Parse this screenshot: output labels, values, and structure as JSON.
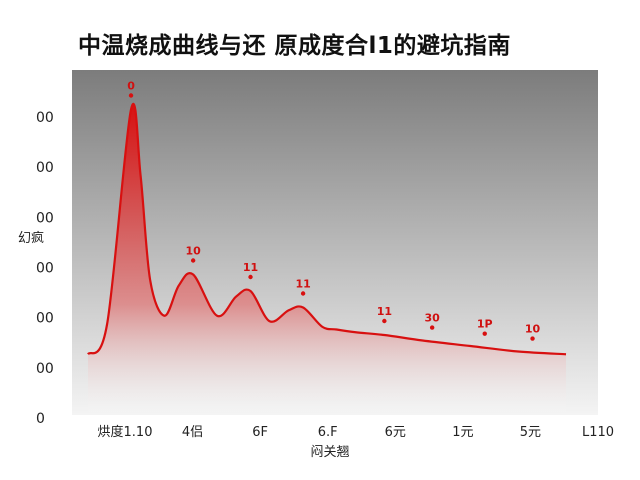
{
  "chart_data": {
    "type": "area",
    "title": "中温烧成曲线与还 原成度合l1的避坑指南",
    "xlabel": "闷关翘",
    "ylabel": "幻疯",
    "yticks": [
      "00",
      "00",
      "00",
      "00",
      "00",
      "00",
      "0"
    ],
    "xticks": [
      "烘度1.10",
      "4侣",
      "6F",
      "6.F",
      "6元",
      "1元",
      "5元",
      "L110"
    ],
    "xlim": [
      0,
      10
    ],
    "ylim": [
      0,
      6
    ],
    "grid": false,
    "background_gradient": [
      "#7c7c7c",
      "#f4f4f4"
    ],
    "series": [
      {
        "color": "#d81010",
        "x": [
          0,
          0.4,
          0.9,
          1.1,
          1.3,
          1.6,
          1.9,
          2.2,
          2.7,
          3.1,
          3.4,
          3.8,
          4.2,
          4.5,
          4.9,
          5.2,
          5.6,
          6.2,
          7,
          8,
          9,
          10
        ],
        "values": [
          1.05,
          1.6,
          5.5,
          4.3,
          2.4,
          1.75,
          2.3,
          2.5,
          1.75,
          2.1,
          2.2,
          1.65,
          1.85,
          1.9,
          1.55,
          1.5,
          1.45,
          1.4,
          1.3,
          1.2,
          1.1,
          1.05
        ]
      }
    ],
    "peak_labels": [
      {
        "x": 0.9,
        "y": 5.5,
        "label": "0"
      },
      {
        "x": 2.2,
        "y": 2.5,
        "label": "10"
      },
      {
        "x": 3.4,
        "y": 2.2,
        "label": "11"
      },
      {
        "x": 4.5,
        "y": 1.9,
        "label": "11"
      },
      {
        "x": 6.2,
        "y": 1.4,
        "label": "11"
      },
      {
        "x": 7.2,
        "y": 1.28,
        "label": "30"
      },
      {
        "x": 8.3,
        "y": 1.17,
        "label": "1P"
      },
      {
        "x": 9.3,
        "y": 1.08,
        "label": "10"
      }
    ]
  }
}
